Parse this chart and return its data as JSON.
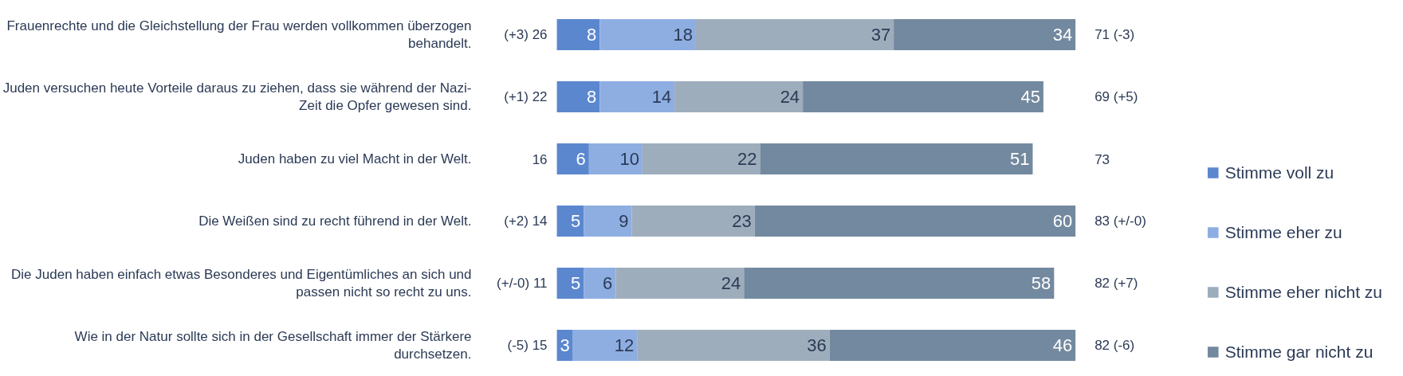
{
  "chart_data": {
    "type": "bar",
    "orientation": "horizontal",
    "stacked": true,
    "categories": [
      "Frauenrechte und die Gleichstellung der Frau werden vollkommen überzogen behandelt.",
      "Juden versuchen heute Vorteile daraus zu ziehen, dass sie während der Nazi-Zeit die Opfer gewesen sind.",
      "Juden haben zu viel Macht in der Welt.",
      "Die Weißen sind zu recht führend in der Welt.",
      "Die Juden haben einfach etwas Besonderes und Eigentümliches an sich und passen nicht so recht zu uns.",
      "Wie in der Natur sollte sich in der Gesellschaft immer der Stärkere durchsetzen."
    ],
    "series": [
      {
        "name": "Stimme voll zu",
        "color": "#5b87cf",
        "values": [
          8,
          8,
          6,
          5,
          5,
          3
        ]
      },
      {
        "name": "Stimme eher zu",
        "color": "#8eaee2",
        "values": [
          18,
          14,
          10,
          9,
          6,
          12
        ]
      },
      {
        "name": "Stimme eher nicht zu",
        "color": "#9eadbc",
        "values": [
          37,
          24,
          22,
          23,
          24,
          36
        ]
      },
      {
        "name": "Stimme gar nicht zu",
        "color": "#73899f",
        "values": [
          34,
          45,
          51,
          60,
          58,
          46
        ]
      }
    ],
    "data_labels": true,
    "legend": "bottom right",
    "tick_labels": "y",
    "annotations": [
      "(+3) 26",
      "71 (-3)",
      "(+1) 22",
      "69 (+5)",
      "16",
      "73",
      "(+2) 14",
      "83 (+/-0)",
      "(+/-0) 11",
      "82 (+7)",
      "(-5) 15",
      "82 (-6)"
    ]
  }
}
